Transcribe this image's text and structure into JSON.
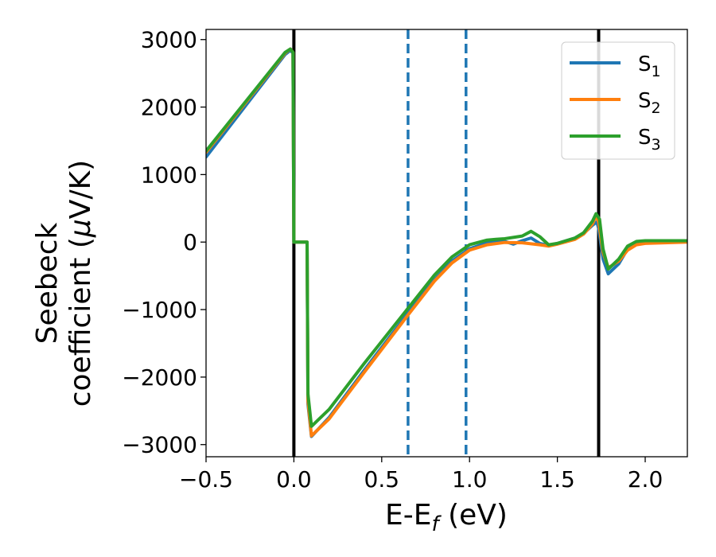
{
  "chart_data": {
    "type": "line",
    "xlabel": "E-E_f (eV)",
    "ylabel": [
      "Seebeck",
      "coefficient  (μV/K)"
    ],
    "xlim": [
      -0.5,
      2.24
    ],
    "ylim": [
      -3180,
      3150
    ],
    "x_ticks": [
      -0.5,
      0.0,
      0.5,
      1.0,
      1.5,
      2.0
    ],
    "x_tick_labels": [
      "−0.5",
      "0.0",
      "0.5",
      "1.0",
      "1.5",
      "2.0"
    ],
    "y_ticks": [
      -3000,
      -2000,
      -1000,
      0,
      1000,
      2000,
      3000
    ],
    "y_tick_labels": [
      "−3000",
      "−2000",
      "−1000",
      "0",
      "1000",
      "2000",
      "3000"
    ],
    "grid": false,
    "legend_position": "top-right",
    "vertical_lines": [
      {
        "x": 0.0,
        "style": "solid",
        "color": "#000000"
      },
      {
        "x": 0.65,
        "style": "dashed",
        "color": "#1f77b4"
      },
      {
        "x": 0.98,
        "style": "dashed",
        "color": "#1f77b4"
      },
      {
        "x": 1.735,
        "style": "solid",
        "color": "#000000"
      }
    ],
    "series": [
      {
        "name": "S_1",
        "color": "#1f77b4",
        "points": [
          [
            -0.5,
            1260
          ],
          [
            -0.05,
            2780
          ],
          [
            -0.02,
            2840
          ],
          [
            -0.005,
            2800
          ],
          [
            0.0,
            0
          ],
          [
            0.075,
            0
          ],
          [
            0.08,
            -2400
          ],
          [
            0.1,
            -2880
          ],
          [
            0.2,
            -2600
          ],
          [
            0.4,
            -1900
          ],
          [
            0.65,
            -1050
          ],
          [
            0.8,
            -560
          ],
          [
            0.9,
            -280
          ],
          [
            1.0,
            -100
          ],
          [
            1.1,
            -10
          ],
          [
            1.2,
            10
          ],
          [
            1.25,
            -30
          ],
          [
            1.3,
            20
          ],
          [
            1.35,
            60
          ],
          [
            1.4,
            -20
          ],
          [
            1.45,
            -50
          ],
          [
            1.5,
            -20
          ],
          [
            1.6,
            60
          ],
          [
            1.65,
            130
          ],
          [
            1.7,
            250
          ],
          [
            1.725,
            300
          ],
          [
            1.735,
            200
          ],
          [
            1.76,
            -250
          ],
          [
            1.79,
            -470
          ],
          [
            1.85,
            -320
          ],
          [
            1.9,
            -100
          ],
          [
            1.95,
            -20
          ],
          [
            2.0,
            0
          ],
          [
            2.24,
            10
          ]
        ]
      },
      {
        "name": "S_2",
        "color": "#ff7f0e",
        "points": [
          [
            -0.5,
            1330
          ],
          [
            -0.05,
            2800
          ],
          [
            -0.02,
            2860
          ],
          [
            -0.005,
            2810
          ],
          [
            0.0,
            0
          ],
          [
            0.075,
            0
          ],
          [
            0.08,
            -2350
          ],
          [
            0.1,
            -2870
          ],
          [
            0.2,
            -2620
          ],
          [
            0.4,
            -1930
          ],
          [
            0.65,
            -1080
          ],
          [
            0.8,
            -580
          ],
          [
            0.9,
            -310
          ],
          [
            1.0,
            -120
          ],
          [
            1.1,
            -40
          ],
          [
            1.2,
            -5
          ],
          [
            1.3,
            -10
          ],
          [
            1.4,
            -40
          ],
          [
            1.45,
            -60
          ],
          [
            1.5,
            -30
          ],
          [
            1.6,
            40
          ],
          [
            1.65,
            120
          ],
          [
            1.7,
            270
          ],
          [
            1.72,
            390
          ],
          [
            1.735,
            300
          ],
          [
            1.76,
            -150
          ],
          [
            1.79,
            -380
          ],
          [
            1.85,
            -280
          ],
          [
            1.9,
            -120
          ],
          [
            1.95,
            -40
          ],
          [
            2.0,
            -20
          ],
          [
            2.24,
            0
          ]
        ]
      },
      {
        "name": "S_3",
        "color": "#2ca02c",
        "points": [
          [
            -0.5,
            1350
          ],
          [
            -0.05,
            2810
          ],
          [
            -0.02,
            2860
          ],
          [
            -0.005,
            2810
          ],
          [
            0.0,
            0
          ],
          [
            0.075,
            0
          ],
          [
            0.08,
            -2250
          ],
          [
            0.1,
            -2730
          ],
          [
            0.2,
            -2480
          ],
          [
            0.4,
            -1800
          ],
          [
            0.65,
            -980
          ],
          [
            0.8,
            -490
          ],
          [
            0.9,
            -220
          ],
          [
            1.0,
            -40
          ],
          [
            1.1,
            30
          ],
          [
            1.15,
            40
          ],
          [
            1.2,
            50
          ],
          [
            1.3,
            90
          ],
          [
            1.35,
            160
          ],
          [
            1.4,
            80
          ],
          [
            1.45,
            -40
          ],
          [
            1.5,
            -20
          ],
          [
            1.6,
            60
          ],
          [
            1.65,
            140
          ],
          [
            1.7,
            310
          ],
          [
            1.72,
            420
          ],
          [
            1.74,
            340
          ],
          [
            1.76,
            -100
          ],
          [
            1.79,
            -400
          ],
          [
            1.85,
            -250
          ],
          [
            1.9,
            -60
          ],
          [
            1.95,
            10
          ],
          [
            2.0,
            20
          ],
          [
            2.24,
            20
          ]
        ]
      }
    ]
  }
}
